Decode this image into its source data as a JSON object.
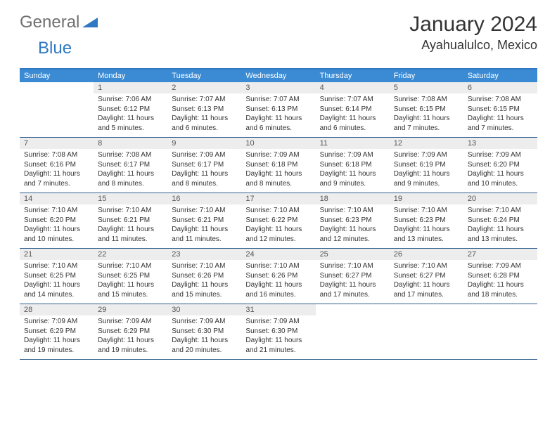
{
  "logo": {
    "left": "General",
    "right": "Blue"
  },
  "title": "January 2024",
  "location": "Ayahualulco, Mexico",
  "colors": {
    "header_bg": "#3b8bd4",
    "header_text": "#ffffff",
    "border": "#2f5f8f",
    "daynum_bg": "#ededed",
    "logo_gray": "#6f6f6f",
    "logo_blue": "#2f78c2"
  },
  "weekdays": [
    "Sunday",
    "Monday",
    "Tuesday",
    "Wednesday",
    "Thursday",
    "Friday",
    "Saturday"
  ],
  "weeks": [
    [
      {
        "n": "",
        "sr": "",
        "ss": "",
        "dl": ""
      },
      {
        "n": "1",
        "sr": "Sunrise: 7:06 AM",
        "ss": "Sunset: 6:12 PM",
        "dl": "Daylight: 11 hours and 5 minutes."
      },
      {
        "n": "2",
        "sr": "Sunrise: 7:07 AM",
        "ss": "Sunset: 6:13 PM",
        "dl": "Daylight: 11 hours and 6 minutes."
      },
      {
        "n": "3",
        "sr": "Sunrise: 7:07 AM",
        "ss": "Sunset: 6:13 PM",
        "dl": "Daylight: 11 hours and 6 minutes."
      },
      {
        "n": "4",
        "sr": "Sunrise: 7:07 AM",
        "ss": "Sunset: 6:14 PM",
        "dl": "Daylight: 11 hours and 6 minutes."
      },
      {
        "n": "5",
        "sr": "Sunrise: 7:08 AM",
        "ss": "Sunset: 6:15 PM",
        "dl": "Daylight: 11 hours and 7 minutes."
      },
      {
        "n": "6",
        "sr": "Sunrise: 7:08 AM",
        "ss": "Sunset: 6:15 PM",
        "dl": "Daylight: 11 hours and 7 minutes."
      }
    ],
    [
      {
        "n": "7",
        "sr": "Sunrise: 7:08 AM",
        "ss": "Sunset: 6:16 PM",
        "dl": "Daylight: 11 hours and 7 minutes."
      },
      {
        "n": "8",
        "sr": "Sunrise: 7:08 AM",
        "ss": "Sunset: 6:17 PM",
        "dl": "Daylight: 11 hours and 8 minutes."
      },
      {
        "n": "9",
        "sr": "Sunrise: 7:09 AM",
        "ss": "Sunset: 6:17 PM",
        "dl": "Daylight: 11 hours and 8 minutes."
      },
      {
        "n": "10",
        "sr": "Sunrise: 7:09 AM",
        "ss": "Sunset: 6:18 PM",
        "dl": "Daylight: 11 hours and 8 minutes."
      },
      {
        "n": "11",
        "sr": "Sunrise: 7:09 AM",
        "ss": "Sunset: 6:18 PM",
        "dl": "Daylight: 11 hours and 9 minutes."
      },
      {
        "n": "12",
        "sr": "Sunrise: 7:09 AM",
        "ss": "Sunset: 6:19 PM",
        "dl": "Daylight: 11 hours and 9 minutes."
      },
      {
        "n": "13",
        "sr": "Sunrise: 7:09 AM",
        "ss": "Sunset: 6:20 PM",
        "dl": "Daylight: 11 hours and 10 minutes."
      }
    ],
    [
      {
        "n": "14",
        "sr": "Sunrise: 7:10 AM",
        "ss": "Sunset: 6:20 PM",
        "dl": "Daylight: 11 hours and 10 minutes."
      },
      {
        "n": "15",
        "sr": "Sunrise: 7:10 AM",
        "ss": "Sunset: 6:21 PM",
        "dl": "Daylight: 11 hours and 11 minutes."
      },
      {
        "n": "16",
        "sr": "Sunrise: 7:10 AM",
        "ss": "Sunset: 6:21 PM",
        "dl": "Daylight: 11 hours and 11 minutes."
      },
      {
        "n": "17",
        "sr": "Sunrise: 7:10 AM",
        "ss": "Sunset: 6:22 PM",
        "dl": "Daylight: 11 hours and 12 minutes."
      },
      {
        "n": "18",
        "sr": "Sunrise: 7:10 AM",
        "ss": "Sunset: 6:23 PM",
        "dl": "Daylight: 11 hours and 12 minutes."
      },
      {
        "n": "19",
        "sr": "Sunrise: 7:10 AM",
        "ss": "Sunset: 6:23 PM",
        "dl": "Daylight: 11 hours and 13 minutes."
      },
      {
        "n": "20",
        "sr": "Sunrise: 7:10 AM",
        "ss": "Sunset: 6:24 PM",
        "dl": "Daylight: 11 hours and 13 minutes."
      }
    ],
    [
      {
        "n": "21",
        "sr": "Sunrise: 7:10 AM",
        "ss": "Sunset: 6:25 PM",
        "dl": "Daylight: 11 hours and 14 minutes."
      },
      {
        "n": "22",
        "sr": "Sunrise: 7:10 AM",
        "ss": "Sunset: 6:25 PM",
        "dl": "Daylight: 11 hours and 15 minutes."
      },
      {
        "n": "23",
        "sr": "Sunrise: 7:10 AM",
        "ss": "Sunset: 6:26 PM",
        "dl": "Daylight: 11 hours and 15 minutes."
      },
      {
        "n": "24",
        "sr": "Sunrise: 7:10 AM",
        "ss": "Sunset: 6:26 PM",
        "dl": "Daylight: 11 hours and 16 minutes."
      },
      {
        "n": "25",
        "sr": "Sunrise: 7:10 AM",
        "ss": "Sunset: 6:27 PM",
        "dl": "Daylight: 11 hours and 17 minutes."
      },
      {
        "n": "26",
        "sr": "Sunrise: 7:10 AM",
        "ss": "Sunset: 6:27 PM",
        "dl": "Daylight: 11 hours and 17 minutes."
      },
      {
        "n": "27",
        "sr": "Sunrise: 7:09 AM",
        "ss": "Sunset: 6:28 PM",
        "dl": "Daylight: 11 hours and 18 minutes."
      }
    ],
    [
      {
        "n": "28",
        "sr": "Sunrise: 7:09 AM",
        "ss": "Sunset: 6:29 PM",
        "dl": "Daylight: 11 hours and 19 minutes."
      },
      {
        "n": "29",
        "sr": "Sunrise: 7:09 AM",
        "ss": "Sunset: 6:29 PM",
        "dl": "Daylight: 11 hours and 19 minutes."
      },
      {
        "n": "30",
        "sr": "Sunrise: 7:09 AM",
        "ss": "Sunset: 6:30 PM",
        "dl": "Daylight: 11 hours and 20 minutes."
      },
      {
        "n": "31",
        "sr": "Sunrise: 7:09 AM",
        "ss": "Sunset: 6:30 PM",
        "dl": "Daylight: 11 hours and 21 minutes."
      },
      {
        "n": "",
        "sr": "",
        "ss": "",
        "dl": ""
      },
      {
        "n": "",
        "sr": "",
        "ss": "",
        "dl": ""
      },
      {
        "n": "",
        "sr": "",
        "ss": "",
        "dl": ""
      }
    ]
  ]
}
